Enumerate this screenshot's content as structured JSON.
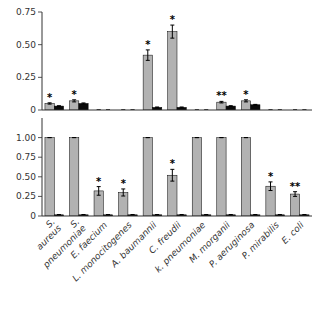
{
  "chart_data": [
    {
      "type": "bar",
      "categories": [
        "S.\naureus",
        "S.\npneumoniae",
        "E. faecium",
        "L. monocitogenes",
        "A. baumannii",
        "C. freudii",
        "k. pneumoniae",
        "M. morganii",
        "P. aeruginosa",
        "P. mirabilis",
        "E. coli"
      ],
      "series": [
        {
          "color": "#b2b2b2",
          "values": [
            0.05,
            0.07,
            0.0,
            0.0,
            0.42,
            0.6,
            0.0,
            0.06,
            0.07,
            0.0,
            0.0
          ],
          "errors": [
            0.005,
            0.008,
            0.0,
            0.0,
            0.04,
            0.05,
            0.0,
            0.006,
            0.008,
            0.0,
            0.0
          ],
          "annotations": [
            "*",
            "*",
            null,
            null,
            "*",
            "*",
            null,
            "**",
            "*",
            null,
            null
          ]
        },
        {
          "color": "#0a0a0a",
          "values": [
            0.03,
            0.05,
            0.0,
            0.0,
            0.02,
            0.02,
            0.0,
            0.03,
            0.04,
            0.0,
            0.0
          ],
          "errors": [
            0.003,
            0.004,
            0.0,
            0.0,
            0.003,
            0.003,
            0.0,
            0.003,
            0.003,
            0.0,
            0.0
          ]
        }
      ],
      "ylim": [
        0,
        0.75
      ],
      "yticks": [
        0,
        0.25,
        {
          "value": 0.5,
          "label": "0.50"
        },
        0.75
      ],
      "tick_labels": "y"
    },
    {
      "type": "bar",
      "categories": [
        "S.\naureus",
        "S.\npneumoniae",
        "E. faecium",
        "L. monocitogenes",
        "A. baumannii",
        "C. freudii",
        "k. pneumoniae",
        "M. morganii",
        "P. aeruginosa",
        "P. mirabilis",
        "E. coli"
      ],
      "series": [
        {
          "color": "#b2b2b2",
          "values": [
            1.0,
            1.0,
            0.32,
            0.3,
            1.0,
            0.52,
            1.0,
            1.0,
            1.0,
            0.38,
            0.28
          ],
          "errors": [
            0.0,
            0.0,
            0.055,
            0.045,
            0.0,
            0.075,
            0.0,
            0.0,
            0.0,
            0.055,
            0.03
          ],
          "annotations": [
            null,
            null,
            "*",
            "*",
            null,
            "*",
            null,
            null,
            null,
            "*",
            "**"
          ]
        },
        {
          "color": "#0a0a0a",
          "values": [
            0.015,
            0.015,
            0.015,
            0.015,
            0.015,
            0.015,
            0.015,
            0.015,
            0.015,
            0.015,
            0.015
          ],
          "errors": [
            0.004,
            0.004,
            0.004,
            0.004,
            0.004,
            0.004,
            0.004,
            0.004,
            0.004,
            0.004,
            0.004
          ]
        }
      ],
      "ylim": [
        0,
        1.25
      ],
      "yticks": [
        0,
        0.25,
        {
          "value": 0.5,
          "label": "0.50"
        },
        0.75,
        {
          "value": 1.0,
          "label": "1.00"
        }
      ]
    }
  ]
}
